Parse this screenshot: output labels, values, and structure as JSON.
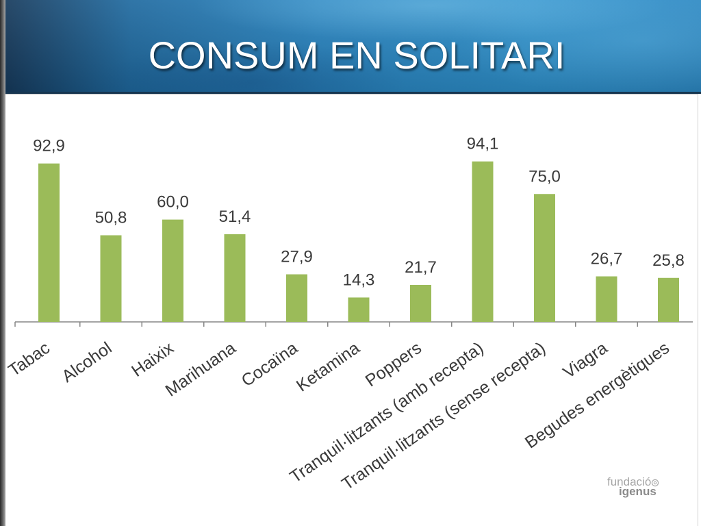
{
  "slide": {
    "title": "CONSUM EN SOLITARI"
  },
  "logo": {
    "line1": "fundació",
    "line2": "igenus",
    "mark_icon": "ring-icon"
  },
  "colors": {
    "banner_blue": "#2883bf",
    "title_text": "#ffffff",
    "bar": "#9bbb59",
    "axis": "#868686",
    "chart_text": "#3a3a3a"
  },
  "chart_data": {
    "type": "bar",
    "categories": [
      "Tabac",
      "Alcohol",
      "Haixix",
      "Marihuana",
      "Cocaïna",
      "Ketamina",
      "Poppers",
      "Tranquil·litzants (amb recepta)",
      "Tranquil·litzants (sense recepta)",
      "Viagra",
      "Begudes energètiques"
    ],
    "values": [
      92.9,
      50.8,
      60.0,
      51.4,
      27.9,
      14.3,
      21.7,
      94.1,
      75.0,
      26.7,
      25.8
    ],
    "data_labels": [
      "92,9",
      "50,8",
      "60,0",
      "51,4",
      "27,9",
      "14,3",
      "21,7",
      "94,1",
      "75,0",
      "26,7",
      "25,8"
    ],
    "ylim": [
      0,
      100
    ],
    "y_axis_visible": false,
    "grid": false,
    "legend": "none"
  }
}
